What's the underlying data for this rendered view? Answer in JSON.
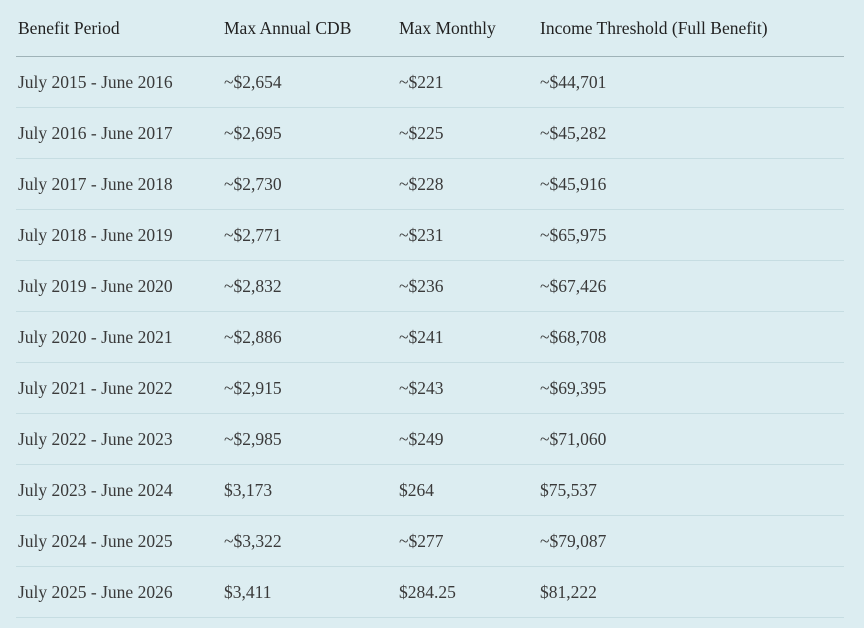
{
  "table": {
    "headers": [
      "Benefit Period",
      "Max Annual CDB",
      "Max Monthly",
      "Income Threshold (Full Benefit)"
    ],
    "rows": [
      [
        "July 2015 - June 2016",
        "~$2,654",
        "~$221",
        "~$44,701"
      ],
      [
        "July 2016 - June 2017",
        "~$2,695",
        "~$225",
        "~$45,282"
      ],
      [
        "July 2017 - June 2018",
        "~$2,730",
        "~$228",
        "~$45,916"
      ],
      [
        "July 2018 - June 2019",
        "~$2,771",
        "~$231",
        "~$65,975"
      ],
      [
        "July 2019 - June 2020",
        "~$2,832",
        "~$236",
        "~$67,426"
      ],
      [
        "July 2020 - June 2021",
        "~$2,886",
        "~$241",
        "~$68,708"
      ],
      [
        "July 2021 - June 2022",
        "~$2,915",
        "~$243",
        "~$69,395"
      ],
      [
        "July 2022 - June 2023",
        "~$2,985",
        "~$249",
        "~$71,060"
      ],
      [
        "July 2023 - June 2024",
        "$3,173",
        "$264",
        "$75,537"
      ],
      [
        "July 2024 - June 2025",
        "~$3,322",
        "~$277",
        "~$79,087"
      ],
      [
        "July 2025 - June 2026",
        "$3,411",
        "$284.25",
        "$81,222"
      ]
    ]
  }
}
